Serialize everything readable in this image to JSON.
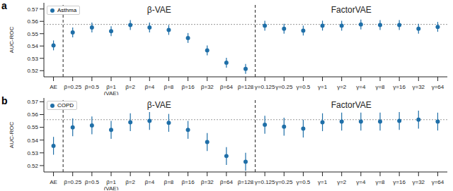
{
  "chart_data": [
    {
      "type": "scatter",
      "title": "a",
      "y_label": "AUC-ROC",
      "categories": [
        "AE",
        "β=0.25",
        "β=0.5",
        "β=1\n(VAE)",
        "β=2",
        "β=4",
        "β=8",
        "β=16",
        "β=32",
        "β=64",
        "β=128",
        "γ=0.125",
        "γ=0.25",
        "γ=0.5",
        "γ=1",
        "γ=2",
        "γ=4",
        "γ=8",
        "γ=16",
        "γ=32",
        "γ=64"
      ],
      "series": [
        {
          "name": "Asthma",
          "color": "#1f6fa8",
          "values": [
            0.5405,
            0.551,
            0.555,
            0.552,
            0.557,
            0.555,
            0.553,
            0.5465,
            0.5365,
            0.5265,
            0.5215,
            0.5565,
            0.554,
            0.5525,
            0.5565,
            0.5565,
            0.5575,
            0.557,
            0.557,
            0.554,
            0.5555
          ],
          "errors": [
            0.004,
            0.004,
            0.004,
            0.004,
            0.004,
            0.004,
            0.004,
            0.004,
            0.004,
            0.004,
            0.004,
            0.004,
            0.004,
            0.004,
            0.004,
            0.004,
            0.004,
            0.004,
            0.004,
            0.004,
            0.004
          ]
        }
      ],
      "annotations": [
        {
          "text": "β-VAE",
          "from": "β=0.25",
          "to": "β=128"
        },
        {
          "text": "FactorVAE",
          "from": "γ=0.125",
          "to": "γ=64"
        }
      ],
      "hline": 0.5575,
      "ylim": [
        0.515,
        0.575
      ],
      "yticks": [
        0.52,
        0.53,
        0.54,
        0.55,
        0.56,
        0.57
      ],
      "legend": "upper left",
      "marker": "circle",
      "grid": false
    },
    {
      "type": "scatter",
      "title": "b",
      "y_label": "AUC-ROC",
      "categories": [
        "AE",
        "β=0.25",
        "β=0.5",
        "β=1\n(VAE)",
        "β=2",
        "β=4",
        "β=8",
        "β=16",
        "β=32",
        "β=64",
        "β=128",
        "γ=0.125",
        "γ=0.25",
        "γ=0.5",
        "γ=1",
        "γ=2",
        "γ=4",
        "γ=8",
        "γ=16",
        "γ=32",
        "γ=64"
      ],
      "series": [
        {
          "name": "COPD",
          "color": "#1f6fa8",
          "values": [
            0.5355,
            0.55,
            0.5515,
            0.548,
            0.554,
            0.555,
            0.5535,
            0.548,
            0.5385,
            0.5275,
            0.523,
            0.552,
            0.5505,
            0.549,
            0.554,
            0.5545,
            0.5545,
            0.5545,
            0.555,
            0.556,
            0.5545
          ],
          "errors": [
            0.007,
            0.007,
            0.007,
            0.007,
            0.007,
            0.007,
            0.007,
            0.007,
            0.007,
            0.007,
            0.007,
            0.007,
            0.007,
            0.007,
            0.007,
            0.007,
            0.007,
            0.007,
            0.007,
            0.007,
            0.007
          ]
        }
      ],
      "annotations": [
        {
          "text": "β-VAE",
          "from": "β=0.25",
          "to": "β=128"
        },
        {
          "text": "FactorVAE",
          "from": "γ=0.125",
          "to": "γ=64"
        }
      ],
      "hline": 0.556,
      "ylim": [
        0.515,
        0.573
      ],
      "yticks": [
        0.52,
        0.53,
        0.54,
        0.55,
        0.56,
        0.57
      ],
      "legend": "upper left",
      "marker": "circle",
      "grid": false
    }
  ]
}
